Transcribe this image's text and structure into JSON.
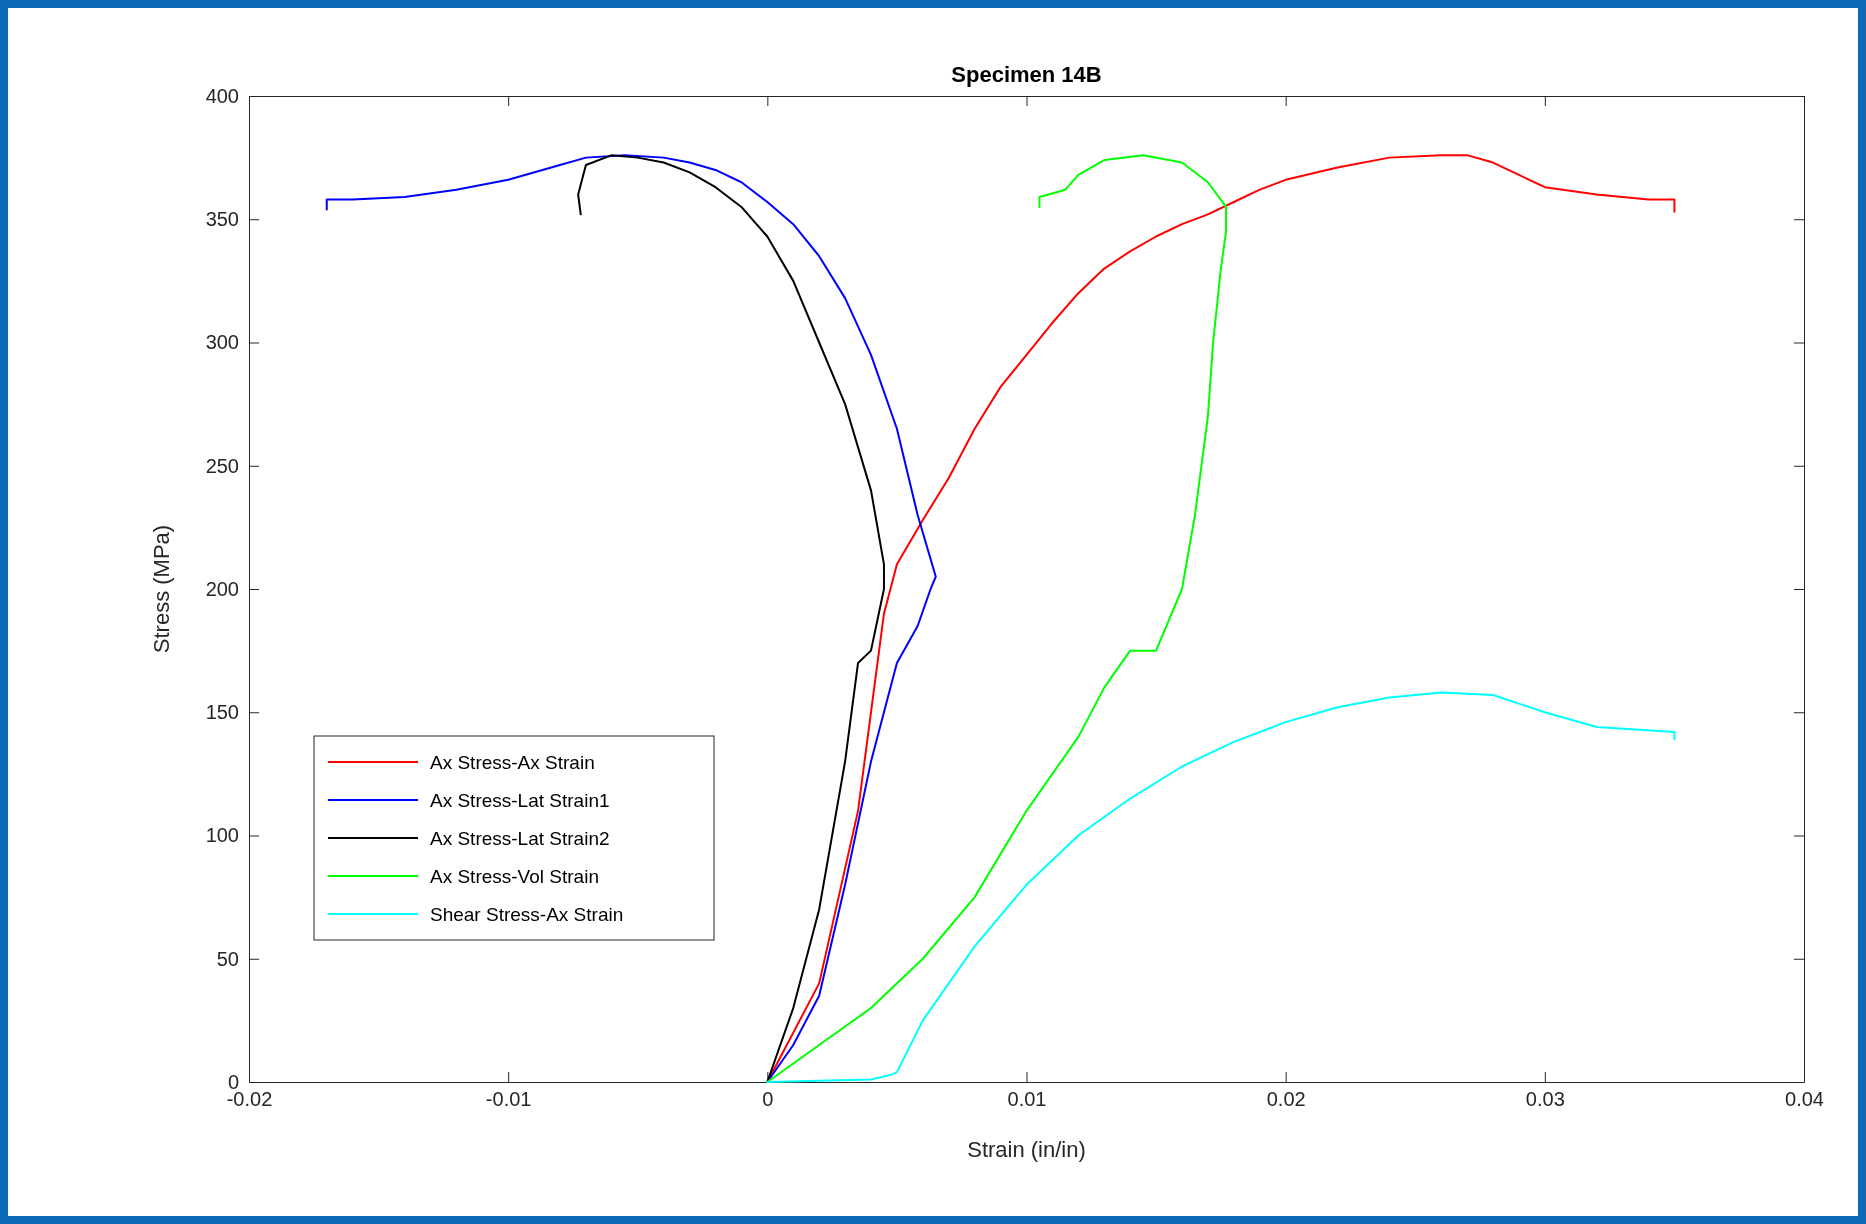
{
  "chart_data": {
    "type": "line",
    "title": "Specimen 14B",
    "xlabel": "Strain (in/in)",
    "ylabel": "Stress (MPa)",
    "xlim": [
      -0.02,
      0.04
    ],
    "xticks": [
      -0.02,
      -0.01,
      0,
      0.01,
      0.02,
      0.03,
      0.04
    ],
    "ylim": [
      0,
      400
    ],
    "yticks": [
      0,
      50,
      100,
      150,
      200,
      250,
      300,
      350,
      400
    ],
    "grid": false,
    "legend": "bottom left",
    "marker": "none",
    "line_style": "solid",
    "series": [
      {
        "name": "Ax Stress-Ax Strain",
        "color": "#ff0000",
        "x": [
          0,
          0.002,
          0.0035,
          0.004,
          0.0045,
          0.005,
          0.006,
          0.007,
          0.008,
          0.009,
          0.01,
          0.011,
          0.012,
          0.013,
          0.014,
          0.015,
          0.016,
          0.017,
          0.018,
          0.019,
          0.02,
          0.022,
          0.024,
          0.026,
          0.027,
          0.028,
          0.029,
          0.03,
          0.032,
          0.034,
          0.035,
          0.035
        ],
        "values": [
          0,
          40,
          110,
          150,
          190,
          210,
          228,
          245,
          265,
          282,
          295,
          308,
          320,
          330,
          337,
          343,
          348,
          352,
          357,
          362,
          366,
          371,
          375,
          376,
          376,
          373,
          368,
          363,
          360,
          358,
          358,
          353
        ]
      },
      {
        "name": "Ax Stress-Lat Strain1",
        "color": "#0000ff",
        "x": [
          0,
          0.001,
          0.002,
          0.003,
          0.004,
          0.005,
          0.0058,
          0.0063,
          0.0065,
          0.0058,
          0.005,
          0.004,
          0.003,
          0.002,
          0.001,
          0,
          -0.001,
          -0.002,
          -0.003,
          -0.004,
          -0.0055,
          -0.007,
          -0.008,
          -0.01,
          -0.012,
          -0.014,
          -0.016,
          -0.017,
          -0.017
        ],
        "values": [
          0,
          15,
          35,
          80,
          130,
          170,
          185,
          200,
          205,
          230,
          265,
          295,
          318,
          335,
          348,
          357,
          365,
          370,
          373,
          375,
          376,
          375,
          372,
          366,
          362,
          359,
          358,
          358,
          354
        ]
      },
      {
        "name": "Ax Stress-Lat Strain2",
        "color": "#000000",
        "x": [
          0,
          0.001,
          0.002,
          0.003,
          0.0035,
          0.004,
          0.0045,
          0.0045,
          0.004,
          0.003,
          0.002,
          0.001,
          0,
          -0.001,
          -0.002,
          -0.003,
          -0.004,
          -0.005,
          -0.006,
          -0.007,
          -0.0073,
          -0.0072
        ],
        "values": [
          0,
          30,
          70,
          130,
          170,
          175,
          200,
          210,
          240,
          275,
          300,
          325,
          343,
          355,
          363,
          369,
          373,
          375,
          376,
          372,
          360,
          352
        ]
      },
      {
        "name": "Ax Stress-Vol Strain",
        "color": "#00ff00",
        "x": [
          0,
          0.002,
          0.004,
          0.006,
          0.008,
          0.01,
          0.012,
          0.013,
          0.014,
          0.015,
          0.016,
          0.0165,
          0.017,
          0.0172,
          0.0175,
          0.0177,
          0.0177,
          0.017,
          0.016,
          0.0145,
          0.013,
          0.012,
          0.0115,
          0.0105,
          0.0105
        ],
        "values": [
          0,
          15,
          30,
          50,
          75,
          110,
          140,
          160,
          175,
          175,
          200,
          230,
          270,
          300,
          330,
          345,
          355,
          365,
          373,
          376,
          374,
          368,
          362,
          359,
          355
        ]
      },
      {
        "name": "Shear Stress-Ax Strain",
        "color": "#00ffff",
        "x": [
          0,
          0.002,
          0.004,
          0.0048,
          0.005,
          0.006,
          0.008,
          0.01,
          0.012,
          0.014,
          0.016,
          0.018,
          0.02,
          0.022,
          0.024,
          0.026,
          0.028,
          0.03,
          0.032,
          0.035,
          0.035
        ],
        "values": [
          0,
          0.5,
          1,
          3,
          4,
          25,
          55,
          80,
          100,
          115,
          128,
          138,
          146,
          152,
          156,
          158,
          157,
          150,
          144,
          142,
          139
        ]
      }
    ]
  }
}
